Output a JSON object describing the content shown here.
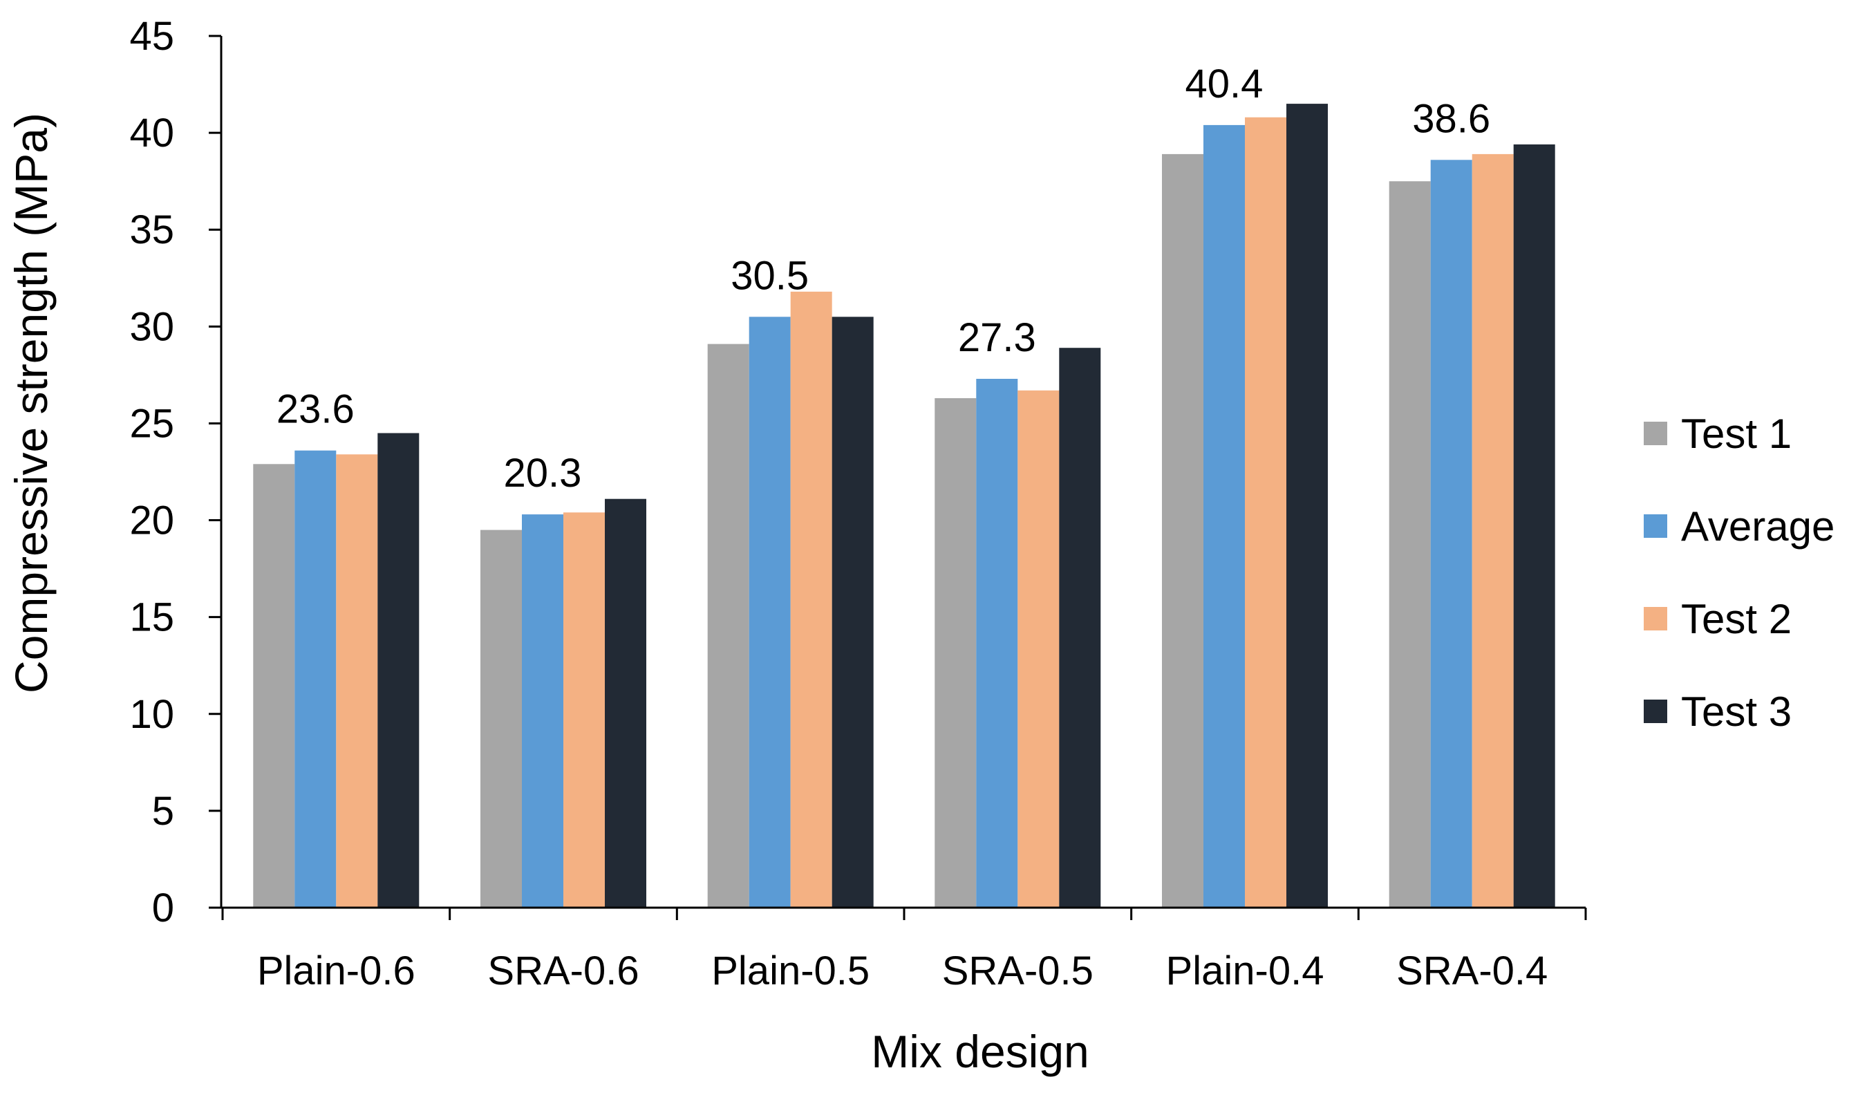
{
  "chart_data": {
    "type": "bar",
    "title": "",
    "xlabel": "Mix design",
    "ylabel": "Compressive strength (MPa)",
    "ylim": [
      0,
      45
    ],
    "yticks": [
      0,
      5,
      10,
      15,
      20,
      25,
      30,
      35,
      40,
      45
    ],
    "grid": false,
    "legend_position": "right",
    "categories": [
      "Plain-0.6",
      "SRA-0.6",
      "Plain-0.5",
      "SRA-0.5",
      "Plain-0.4",
      "SRA-0.4"
    ],
    "series": [
      {
        "name": "Test 1",
        "color": "#A6A6A6",
        "values": [
          22.9,
          19.5,
          29.1,
          26.3,
          38.9,
          37.5
        ]
      },
      {
        "name": "Average",
        "color": "#5B9BD5",
        "values": [
          23.6,
          20.3,
          30.5,
          27.3,
          40.4,
          38.6
        ]
      },
      {
        "name": "Test 2",
        "color": "#F4B183",
        "values": [
          23.4,
          20.4,
          31.8,
          26.7,
          40.8,
          38.9
        ]
      },
      {
        "name": "Test 3",
        "color": "#222A35",
        "values": [
          24.5,
          21.1,
          30.5,
          28.9,
          41.5,
          39.4
        ]
      }
    ],
    "legend_order": [
      "Test 1",
      "Average",
      "Test 2",
      "Test 3"
    ],
    "data_labels": [
      "23.6",
      "20.3",
      "30.5",
      "27.3",
      "40.4",
      "38.6"
    ]
  }
}
